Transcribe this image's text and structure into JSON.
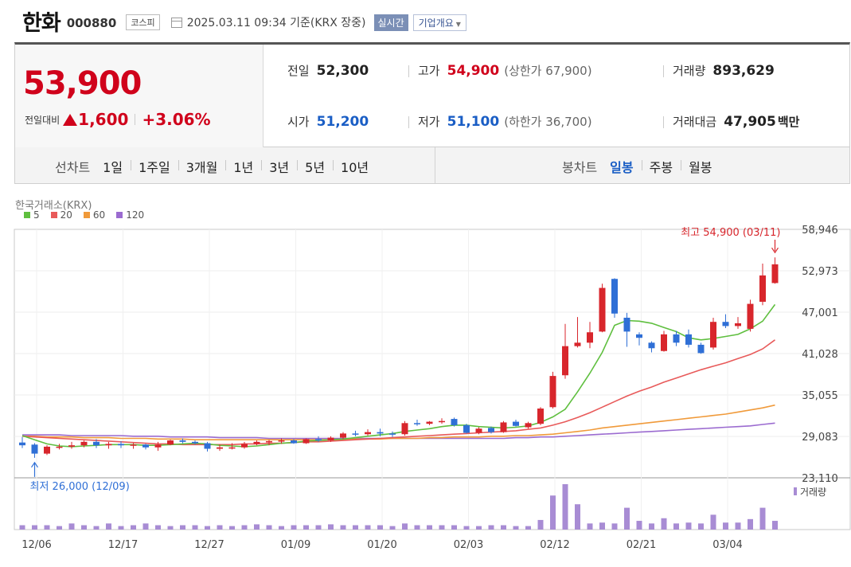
{
  "header": {
    "name": "한화",
    "code": "000880",
    "market": "코스피",
    "as_of": "2025.03.11 09:34 기준(KRX 장중)",
    "realtime": "실시간",
    "company_info": "기업개요"
  },
  "quote": {
    "price": "53,900",
    "change_label": "전일대비",
    "change": "1,600",
    "change_rate": "+3.06%",
    "prev_close_label": "전일",
    "prev_close": "52,300",
    "open_label": "시가",
    "open": "51,200",
    "high_label": "고가",
    "high": "54,900",
    "upper_limit": "(상한가 67,900)",
    "low_label": "저가",
    "low": "51,100",
    "lower_limit": "(하한가 36,700)",
    "volume_label": "거래량",
    "volume": "893,629",
    "amount_label": "거래대금",
    "amount": "47,905",
    "amount_unit": "백만"
  },
  "periods": {
    "line_label": "선차트",
    "line_items": [
      "1일",
      "1주일",
      "3개월",
      "1년",
      "3년",
      "5년",
      "10년"
    ],
    "candle_label": "봉차트",
    "candle_items": [
      "일봉",
      "주봉",
      "월봉"
    ],
    "active_candle": "일봉"
  },
  "colors": {
    "up": "#d8262c",
    "down": "#2f6fd6",
    "ma5": "#5fbf3f",
    "ma20": "#e85a5a",
    "ma60": "#f09a3a",
    "ma120": "#9b6bd0",
    "volume": "#a88cd4"
  },
  "chart_data": {
    "type": "candlestick",
    "exchange": "한국거래소(KRX)",
    "legend": [
      "5",
      "20",
      "60",
      "120"
    ],
    "y_ticks": [
      "58,946",
      "52,973",
      "47,001",
      "41,028",
      "35,055",
      "29,083",
      "23,110"
    ],
    "ylim": [
      23110,
      58946
    ],
    "x_ticks": [
      "12/06",
      "12/17",
      "12/27",
      "01/09",
      "01/20",
      "02/03",
      "02/12",
      "02/21",
      "03/04"
    ],
    "x_tick_index": [
      0,
      7,
      14,
      21,
      28,
      35,
      42,
      49,
      56
    ],
    "high_note": "최고 54,900 (03/11)",
    "high_note_index": 61,
    "low_note": "최저 26,000 (12/09)",
    "low_note_index": 1,
    "volume_label": "거래량",
    "candles": [
      {
        "o": 28200,
        "h": 29000,
        "l": 27400,
        "c": 27800
      },
      {
        "o": 27900,
        "h": 28100,
        "l": 26000,
        "c": 26600
      },
      {
        "o": 26600,
        "h": 27800,
        "l": 26400,
        "c": 27600
      },
      {
        "o": 27600,
        "h": 28000,
        "l": 27200,
        "c": 27600
      },
      {
        "o": 27600,
        "h": 28300,
        "l": 27300,
        "c": 27800
      },
      {
        "o": 27800,
        "h": 28500,
        "l": 27500,
        "c": 28300
      },
      {
        "o": 28300,
        "h": 28700,
        "l": 27400,
        "c": 27800
      },
      {
        "o": 27800,
        "h": 28300,
        "l": 27300,
        "c": 28000
      },
      {
        "o": 28000,
        "h": 28400,
        "l": 27400,
        "c": 27800
      },
      {
        "o": 27800,
        "h": 28100,
        "l": 27300,
        "c": 27900
      },
      {
        "o": 27900,
        "h": 28000,
        "l": 27200,
        "c": 27500
      },
      {
        "o": 27500,
        "h": 28300,
        "l": 27000,
        "c": 27900
      },
      {
        "o": 27900,
        "h": 28600,
        "l": 27800,
        "c": 28500
      },
      {
        "o": 28500,
        "h": 28800,
        "l": 28100,
        "c": 28300
      },
      {
        "o": 28300,
        "h": 28500,
        "l": 27900,
        "c": 28100
      },
      {
        "o": 28100,
        "h": 28300,
        "l": 26900,
        "c": 27300
      },
      {
        "o": 27300,
        "h": 27900,
        "l": 27000,
        "c": 27500
      },
      {
        "o": 27500,
        "h": 28100,
        "l": 27200,
        "c": 27500
      },
      {
        "o": 27500,
        "h": 28300,
        "l": 27300,
        "c": 28000
      },
      {
        "o": 28000,
        "h": 28500,
        "l": 27800,
        "c": 28300
      },
      {
        "o": 28300,
        "h": 28600,
        "l": 27800,
        "c": 28400
      },
      {
        "o": 28400,
        "h": 28800,
        "l": 28000,
        "c": 28500
      },
      {
        "o": 28500,
        "h": 28700,
        "l": 28000,
        "c": 28100
      },
      {
        "o": 28100,
        "h": 28800,
        "l": 28000,
        "c": 28700
      },
      {
        "o": 28700,
        "h": 29100,
        "l": 28300,
        "c": 28500
      },
      {
        "o": 28500,
        "h": 29100,
        "l": 28300,
        "c": 28900
      },
      {
        "o": 28900,
        "h": 29700,
        "l": 28700,
        "c": 29500
      },
      {
        "o": 29500,
        "h": 29900,
        "l": 29100,
        "c": 29400
      },
      {
        "o": 29400,
        "h": 30100,
        "l": 29200,
        "c": 29700
      },
      {
        "o": 29700,
        "h": 30200,
        "l": 29100,
        "c": 29500
      },
      {
        "o": 29500,
        "h": 29800,
        "l": 29000,
        "c": 29400
      },
      {
        "o": 29400,
        "h": 31300,
        "l": 29200,
        "c": 31000
      },
      {
        "o": 31000,
        "h": 31500,
        "l": 30600,
        "c": 30900
      },
      {
        "o": 30900,
        "h": 31300,
        "l": 30700,
        "c": 31200
      },
      {
        "o": 31200,
        "h": 31700,
        "l": 30900,
        "c": 31300
      },
      {
        "o": 31600,
        "h": 31800,
        "l": 30500,
        "c": 30700
      },
      {
        "o": 30700,
        "h": 30900,
        "l": 29500,
        "c": 29600
      },
      {
        "o": 29600,
        "h": 30400,
        "l": 29400,
        "c": 30200
      },
      {
        "o": 30300,
        "h": 30500,
        "l": 29500,
        "c": 29700
      },
      {
        "o": 29700,
        "h": 31300,
        "l": 29600,
        "c": 31100
      },
      {
        "o": 31200,
        "h": 31500,
        "l": 30500,
        "c": 30600
      },
      {
        "o": 30400,
        "h": 31200,
        "l": 30200,
        "c": 31000
      },
      {
        "o": 30900,
        "h": 33300,
        "l": 30700,
        "c": 33100
      },
      {
        "o": 33300,
        "h": 38400,
        "l": 33100,
        "c": 37800
      },
      {
        "o": 37900,
        "h": 45300,
        "l": 37400,
        "c": 42100
      },
      {
        "o": 42100,
        "h": 46300,
        "l": 41900,
        "c": 42600
      },
      {
        "o": 42600,
        "h": 45600,
        "l": 41800,
        "c": 44100
      },
      {
        "o": 44200,
        "h": 51100,
        "l": 44100,
        "c": 50500
      },
      {
        "o": 51800,
        "h": 51900,
        "l": 46200,
        "c": 46800
      },
      {
        "o": 46200,
        "h": 46900,
        "l": 42000,
        "c": 44200
      },
      {
        "o": 43800,
        "h": 44100,
        "l": 42200,
        "c": 43300
      },
      {
        "o": 42600,
        "h": 42800,
        "l": 41200,
        "c": 41800
      },
      {
        "o": 41400,
        "h": 44300,
        "l": 41300,
        "c": 43800
      },
      {
        "o": 43800,
        "h": 44300,
        "l": 42100,
        "c": 42600
      },
      {
        "o": 43800,
        "h": 44500,
        "l": 41900,
        "c": 42300
      },
      {
        "o": 42300,
        "h": 42600,
        "l": 41000,
        "c": 41100
      },
      {
        "o": 41900,
        "h": 46200,
        "l": 41600,
        "c": 45600
      },
      {
        "o": 45600,
        "h": 46700,
        "l": 44700,
        "c": 45000
      },
      {
        "o": 45000,
        "h": 46300,
        "l": 44600,
        "c": 45400
      },
      {
        "o": 44600,
        "h": 48800,
        "l": 44200,
        "c": 48200
      },
      {
        "o": 48500,
        "h": 54000,
        "l": 48000,
        "c": 52300
      },
      {
        "o": 51200,
        "h": 54900,
        "l": 51100,
        "c": 53900
      }
    ],
    "ma": {
      "5": [
        29200,
        28600,
        28000,
        27700,
        27600,
        27700,
        27800,
        27900,
        27900,
        27900,
        27800,
        27800,
        27900,
        28000,
        28100,
        28000,
        27800,
        27700,
        27600,
        27700,
        27900,
        28100,
        28200,
        28400,
        28500,
        28600,
        28700,
        28900,
        29100,
        29300,
        29500,
        29800,
        30000,
        30200,
        30500,
        30700,
        30700,
        30500,
        30400,
        30300,
        30400,
        30600,
        31100,
        31900,
        33000,
        35500,
        38200,
        41200,
        45100,
        45800,
        45700,
        45400,
        44800,
        44200,
        43300,
        43000,
        43200,
        43500,
        43800,
        44600,
        45700,
        48100
      ],
      "20": [
        29100,
        29000,
        28900,
        28800,
        28700,
        28600,
        28500,
        28400,
        28300,
        28200,
        28100,
        28000,
        28000,
        27900,
        27900,
        27900,
        27900,
        27900,
        28000,
        28000,
        28100,
        28100,
        28200,
        28300,
        28300,
        28400,
        28500,
        28600,
        28700,
        28800,
        28900,
        29000,
        29100,
        29200,
        29300,
        29400,
        29500,
        29600,
        29700,
        29800,
        29900,
        30100,
        30300,
        30700,
        31200,
        31800,
        32500,
        33300,
        34100,
        34900,
        35600,
        36200,
        36900,
        37500,
        38100,
        38700,
        39200,
        39700,
        40300,
        40900,
        41700,
        43000
      ],
      "60": [
        29100,
        29100,
        29000,
        29000,
        29000,
        28900,
        28900,
        28900,
        28800,
        28800,
        28800,
        28700,
        28700,
        28700,
        28600,
        28600,
        28600,
        28600,
        28600,
        28600,
        28600,
        28600,
        28600,
        28600,
        28600,
        28600,
        28600,
        28700,
        28700,
        28700,
        28800,
        28800,
        28800,
        28900,
        28900,
        29000,
        29000,
        29000,
        29100,
        29100,
        29200,
        29200,
        29300,
        29400,
        29600,
        29800,
        30000,
        30300,
        30500,
        30700,
        30900,
        31100,
        31300,
        31500,
        31700,
        31900,
        32100,
        32300,
        32600,
        32900,
        33200,
        33600
      ],
      "120": [
        29300,
        29300,
        29300,
        29300,
        29200,
        29200,
        29200,
        29200,
        29200,
        29100,
        29100,
        29100,
        29000,
        29000,
        29000,
        29000,
        28900,
        28900,
        28900,
        28900,
        28800,
        28800,
        28800,
        28800,
        28800,
        28800,
        28800,
        28800,
        28800,
        28800,
        28800,
        28800,
        28800,
        28800,
        28800,
        28800,
        28800,
        28800,
        28800,
        28800,
        28900,
        28900,
        29000,
        29000,
        29100,
        29200,
        29300,
        29400,
        29500,
        29600,
        29700,
        29800,
        29900,
        30000,
        30100,
        30200,
        30300,
        30400,
        30500,
        30600,
        30800,
        31000
      ]
    },
    "volume_rel": [
      5,
      5,
      5,
      4,
      7,
      5,
      4,
      7,
      4,
      5,
      7,
      5,
      4,
      5,
      5,
      4,
      5,
      4,
      5,
      6,
      5,
      4,
      5,
      5,
      5,
      6,
      5,
      5,
      5,
      5,
      4,
      7,
      5,
      5,
      5,
      5,
      4,
      4,
      5,
      5,
      4,
      4,
      11,
      39,
      52,
      29,
      7,
      8,
      7,
      25,
      10,
      7,
      13,
      7,
      8,
      7,
      17,
      8,
      8,
      12,
      25,
      10
    ]
  }
}
